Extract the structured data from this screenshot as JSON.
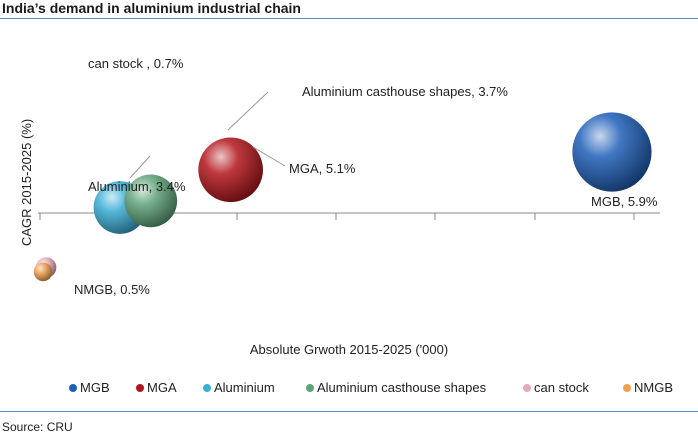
{
  "header": {
    "title": "India’s demand in aluminium industrial chain"
  },
  "footer": {
    "source": "Source: CRU"
  },
  "chart_data": {
    "type": "scatter",
    "variant": "bubble",
    "title": "India’s demand in aluminium industrial chain",
    "xlabel": "Absolute Grwoth 2015-2025 ('000)",
    "ylabel": "CAGR 2015-2025 (%)",
    "legend_position": "bottom",
    "grid": false,
    "series": [
      {
        "name": "MGB",
        "label": "MGB, 5.9%",
        "color": "#1f5fb8",
        "x": 9.3,
        "y": 5.9,
        "size": 9
      },
      {
        "name": "MGA",
        "label": "MGA, 5.1%",
        "color": "#b3161c",
        "x": 3.1,
        "y": 5.1,
        "size": 6
      },
      {
        "name": "Aluminium",
        "label": "Aluminium, 3.4%",
        "color": "#3aaed6",
        "x": 1.3,
        "y": 3.4,
        "size": 4
      },
      {
        "name": "Aluminium casthouse shapes",
        "label": "Aluminium casthouse shapes, 3.7%",
        "color": "#5fa37a",
        "x": 1.8,
        "y": 3.7,
        "size": 4
      },
      {
        "name": "can stock",
        "label": "can stock , 0.7%",
        "color": "#e6a9b8",
        "x": 0.1,
        "y": 0.7,
        "size": 0.6
      },
      {
        "name": "NMGB",
        "label": "NMGB, 0.5%",
        "color": "#f0a050",
        "x": 0.05,
        "y": 0.5,
        "size": 0.5
      }
    ]
  }
}
